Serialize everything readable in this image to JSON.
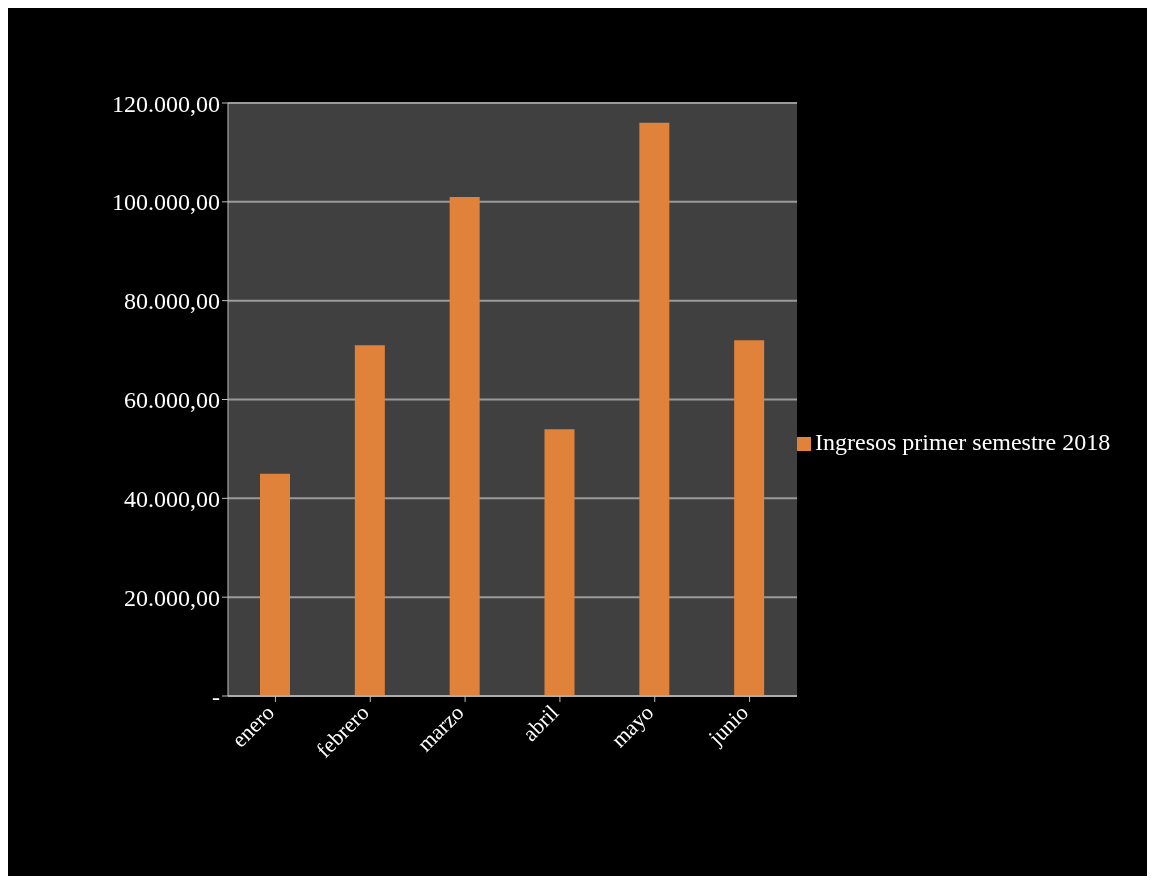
{
  "chart_data": {
    "type": "bar",
    "categories": [
      "enero",
      "febrero",
      "marzo",
      "abril",
      "mayo",
      "junio"
    ],
    "series": [
      {
        "name": "Ingresos primer semestre 2018",
        "color": "#e0823a",
        "values": [
          45000,
          71000,
          101000,
          54000,
          116000,
          72000
        ]
      }
    ],
    "ylim": [
      0,
      120000
    ],
    "yticks": [
      {
        "value": 0,
        "label": "-"
      },
      {
        "value": 20000,
        "label": "20.000,00"
      },
      {
        "value": 40000,
        "label": "40.000,00"
      },
      {
        "value": 60000,
        "label": "60.000,00"
      },
      {
        "value": 80000,
        "label": "80.000,00"
      },
      {
        "value": 100000,
        "label": "100.000,00"
      },
      {
        "value": 120000,
        "label": "120.000,00"
      }
    ],
    "grid": "y",
    "legend": "right"
  }
}
